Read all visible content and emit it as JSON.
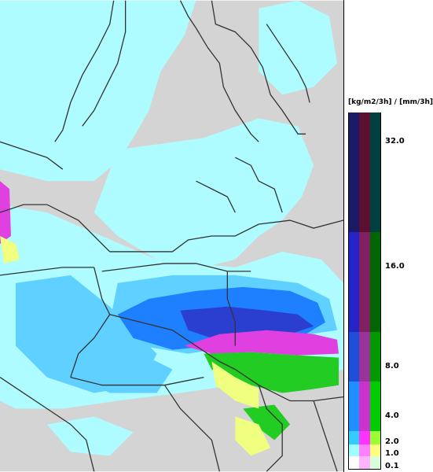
{
  "legend": {
    "title": "[kg/m2/3h] / [mm/3h]",
    "ticks": [
      "32.0",
      "16.0",
      "8.0",
      "4.0",
      "2.0",
      "1.0",
      "0.1"
    ],
    "bands": [
      {
        "c1": "#ffffff",
        "c2": "#ffb3ff",
        "c3": "#d9ffd9"
      },
      {
        "c1": "#9fffff",
        "c2": "#ff80ff",
        "c3": "#ffff80"
      },
      {
        "c1": "#33ccff",
        "c2": "#ff33ff",
        "c3": "#99ff33"
      },
      {
        "c1": "#1e90ff",
        "c2": "#cc33cc",
        "c3": "#00cc00"
      },
      {
        "c1": "#1f4fd8",
        "c2": "#993399",
        "c3": "#009900"
      },
      {
        "c1": "#2424c8",
        "c2": "#802060",
        "c3": "#006600"
      },
      {
        "c1": "#1a1a66",
        "c2": "#5a1030",
        "c3": "#004040"
      }
    ]
  },
  "colors": {
    "land": "#d4d4d4",
    "light_precip": "#aefcff",
    "sky_precip": "#5fd0ff",
    "blue_precip": "#1e7fff",
    "dark_blue_precip": "#2a3fd0",
    "magenta_precip": "#e040e0",
    "green_precip": "#22cc22",
    "yellow_precip": "#f0ff80",
    "border": "#333333"
  }
}
